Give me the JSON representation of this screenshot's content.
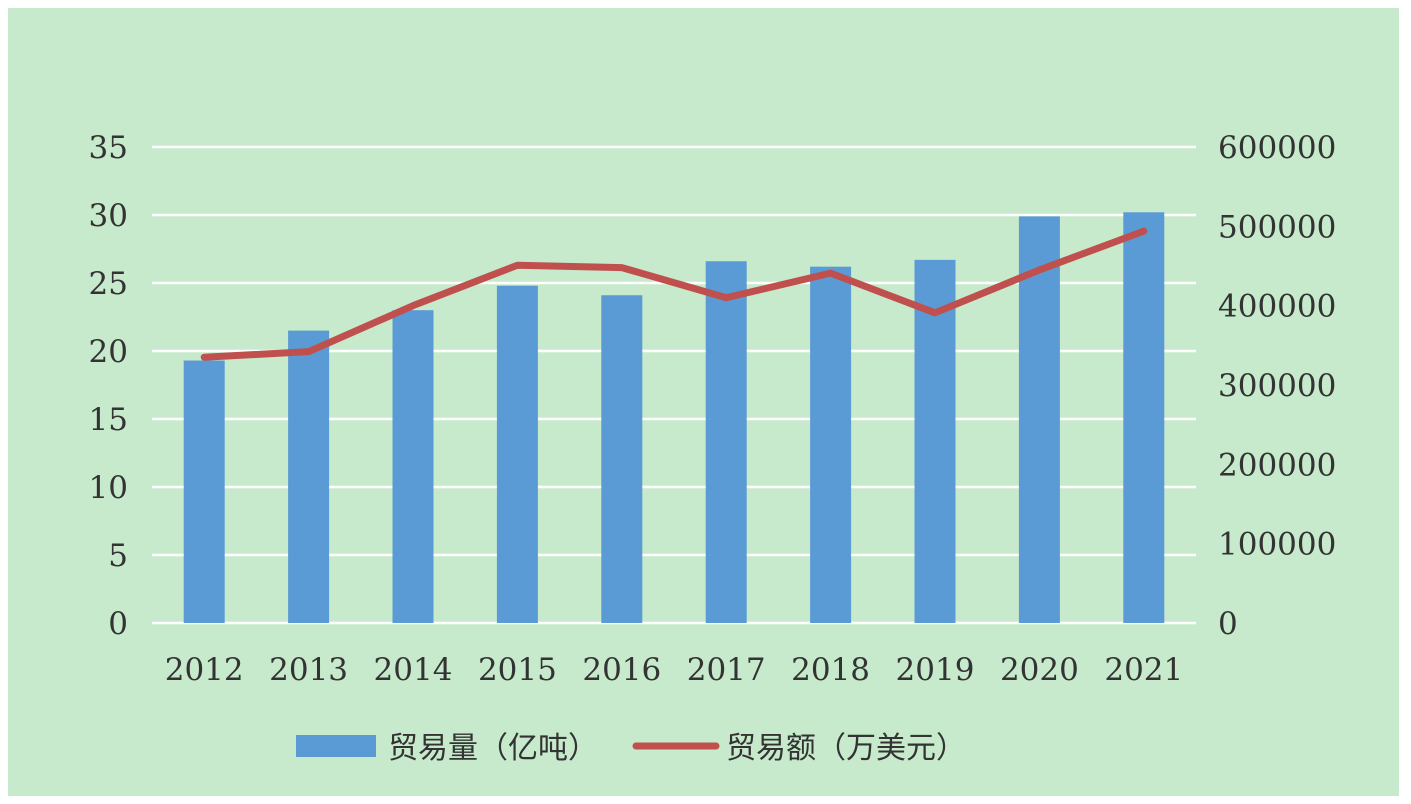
{
  "chart_data": {
    "type": "bar+line",
    "categories": [
      "2012",
      "2013",
      "2014",
      "2015",
      "2016",
      "2017",
      "2018",
      "2019",
      "2020",
      "2021"
    ],
    "series": [
      {
        "name": "贸易量（亿吨）",
        "type": "bar",
        "axis": "left",
        "color": "#5b9bd5",
        "values": [
          19.3,
          21.5,
          23.0,
          24.8,
          24.1,
          26.6,
          26.2,
          26.7,
          29.9,
          30.2
        ]
      },
      {
        "name": "贸易额（万美元）",
        "type": "line",
        "axis": "right",
        "color": "#c0504d",
        "values": [
          335000,
          342000,
          400000,
          451000,
          448000,
          410000,
          441000,
          391000,
          445000,
          494000
        ]
      }
    ],
    "y_left": {
      "min": 0,
      "max": 35,
      "step": 5
    },
    "y_right": {
      "min": 0,
      "max": 600000,
      "step": 100000
    },
    "grid": true,
    "legend_position": "bottom",
    "background": "#c6eacb"
  }
}
